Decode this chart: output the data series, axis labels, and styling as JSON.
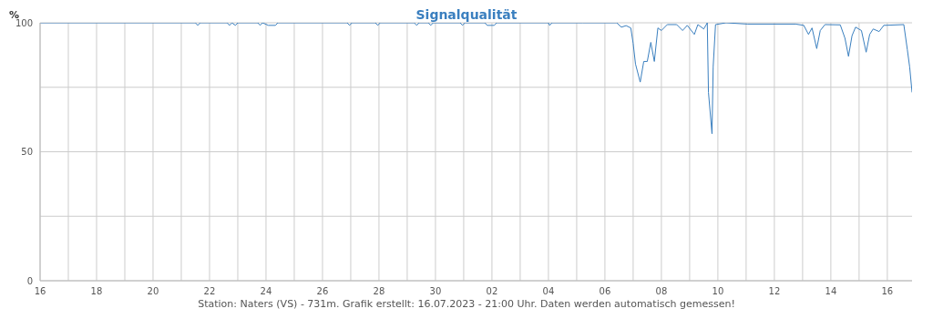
{
  "chart_data": {
    "type": "line",
    "title": "Signalqualität",
    "ylabel": "%",
    "annotations": [
      "Station: Naters (VS) - 731m. Grafik erstellt: 16.07.2023 - 21:00 Uhr. Daten werden automatisch gemessen!"
    ],
    "x": [
      "2023-06-16T00:00",
      "2023-06-21T12:00",
      "2023-06-21T14:00",
      "2023-06-21T16:00",
      "2023-06-22T15:00",
      "2023-06-22T17:00",
      "2023-06-22T19:00",
      "2023-06-22T22:00",
      "2023-06-23T00:00",
      "2023-06-23T17:00",
      "2023-06-23T19:00",
      "2023-06-23T21:00",
      "2023-06-24T02:00",
      "2023-06-24T08:00",
      "2023-06-24T10:00",
      "2023-06-26T21:00",
      "2023-06-26T23:00",
      "2023-06-27T01:00",
      "2023-06-27T21:00",
      "2023-06-27T23:00",
      "2023-06-28T01:00",
      "2023-06-29T06:00",
      "2023-06-29T08:00",
      "2023-06-29T10:00",
      "2023-06-29T18:00",
      "2023-06-29T20:00",
      "2023-06-29T22:00",
      "2023-06-30T21:00",
      "2023-06-30T23:00",
      "2023-07-01T01:00",
      "2023-07-01T18:00",
      "2023-07-01T20:00",
      "2023-07-02T02:00",
      "2023-07-02T04:00",
      "2023-07-04T00:00",
      "2023-07-04T01:00",
      "2023-07-04T03:00",
      "2023-07-05T05:00",
      "2023-07-06T10:00",
      "2023-07-06T14:00",
      "2023-07-06T18:00",
      "2023-07-06T22:00",
      "2023-07-07T00:00",
      "2023-07-07T02:00",
      "2023-07-07T06:00",
      "2023-07-07T09:00",
      "2023-07-07T12:00",
      "2023-07-07T15:00",
      "2023-07-07T18:00",
      "2023-07-07T21:00",
      "2023-07-08T00:00",
      "2023-07-08T05:00",
      "2023-07-08T13:00",
      "2023-07-08T18:00",
      "2023-07-08T22:00",
      "2023-07-09T04:00",
      "2023-07-09T07:00",
      "2023-07-09T12:00",
      "2023-07-09T15:00",
      "2023-07-09T16:00",
      "2023-07-09T19:00",
      "2023-07-09T20:00",
      "2023-07-09T22:00",
      "2023-07-10T07:00",
      "2023-07-11T01:00",
      "2023-07-12T18:00",
      "2023-07-13T01:00",
      "2023-07-13T05:00",
      "2023-07-13T08:00",
      "2023-07-13T12:00",
      "2023-07-13T15:00",
      "2023-07-13T19:00",
      "2023-07-14T08:00",
      "2023-07-14T12:00",
      "2023-07-14T15:00",
      "2023-07-14T18:00",
      "2023-07-14T21:00",
      "2023-07-15T02:00",
      "2023-07-15T06:00",
      "2023-07-15T09:00",
      "2023-07-15T12:00",
      "2023-07-15T17:00",
      "2023-07-15T21:00",
      "2023-07-16T14:00",
      "2023-07-16T17:00",
      "2023-07-16T19:00",
      "2023-07-16T21:00"
    ],
    "series": [
      {
        "color": "#3a7fbf",
        "values": [
          100,
          100,
          99,
          100,
          100,
          99,
          100,
          99,
          100,
          100,
          99,
          100,
          99,
          99,
          100,
          100,
          99,
          100,
          100,
          99,
          100,
          100,
          99,
          100,
          100,
          99,
          100,
          100,
          99,
          100,
          100,
          99,
          99,
          100,
          100,
          99,
          100,
          100,
          100,
          98.3,
          98.9,
          98,
          92,
          84,
          77,
          85,
          85,
          92.4,
          85,
          98,
          97,
          99.3,
          99.3,
          97,
          99,
          95.5,
          99.3,
          97.6,
          100,
          73,
          57,
          83,
          99.3,
          100,
          99.5,
          99.5,
          99,
          95.5,
          98,
          90,
          97,
          99.3,
          99.2,
          94,
          87,
          95,
          98.3,
          97,
          88.6,
          95.5,
          97.6,
          96.6,
          99,
          99.3,
          89.6,
          82.8,
          73
        ]
      }
    ],
    "xlim": [
      "2023-06-16T00:00",
      "2023-07-16T21:00"
    ],
    "xticks": [
      {
        "value": "2023-06-16",
        "label": "16"
      },
      {
        "value": "2023-06-17",
        "label": null
      },
      {
        "value": "2023-06-18",
        "label": "18"
      },
      {
        "value": "2023-06-19",
        "label": null
      },
      {
        "value": "2023-06-20",
        "label": "20"
      },
      {
        "value": "2023-06-21",
        "label": null
      },
      {
        "value": "2023-06-22",
        "label": "22"
      },
      {
        "value": "2023-06-23",
        "label": null
      },
      {
        "value": "2023-06-24",
        "label": "24"
      },
      {
        "value": "2023-06-25",
        "label": null
      },
      {
        "value": "2023-06-26",
        "label": "26"
      },
      {
        "value": "2023-06-27",
        "label": null
      },
      {
        "value": "2023-06-28",
        "label": "28"
      },
      {
        "value": "2023-06-29",
        "label": null
      },
      {
        "value": "2023-06-30",
        "label": "30"
      },
      {
        "value": "2023-07-01",
        "label": null
      },
      {
        "value": "2023-07-02",
        "label": "02"
      },
      {
        "value": "2023-07-03",
        "label": null
      },
      {
        "value": "2023-07-04",
        "label": "04"
      },
      {
        "value": "2023-07-05",
        "label": null
      },
      {
        "value": "2023-07-06",
        "label": "06"
      },
      {
        "value": "2023-07-07",
        "label": null
      },
      {
        "value": "2023-07-08",
        "label": "08"
      },
      {
        "value": "2023-07-09",
        "label": null
      },
      {
        "value": "2023-07-10",
        "label": "10"
      },
      {
        "value": "2023-07-11",
        "label": null
      },
      {
        "value": "2023-07-12",
        "label": "12"
      },
      {
        "value": "2023-07-13",
        "label": null
      },
      {
        "value": "2023-07-14",
        "label": "14"
      },
      {
        "value": "2023-07-15",
        "label": null
      },
      {
        "value": "2023-07-16",
        "label": "16"
      }
    ],
    "ylim": [
      0,
      100
    ],
    "yticks": [
      0,
      {
        "value": 25,
        "label": null
      },
      50,
      {
        "value": 75,
        "label": null
      },
      100
    ],
    "grid": true,
    "marker": "none",
    "line_style": "solid"
  }
}
